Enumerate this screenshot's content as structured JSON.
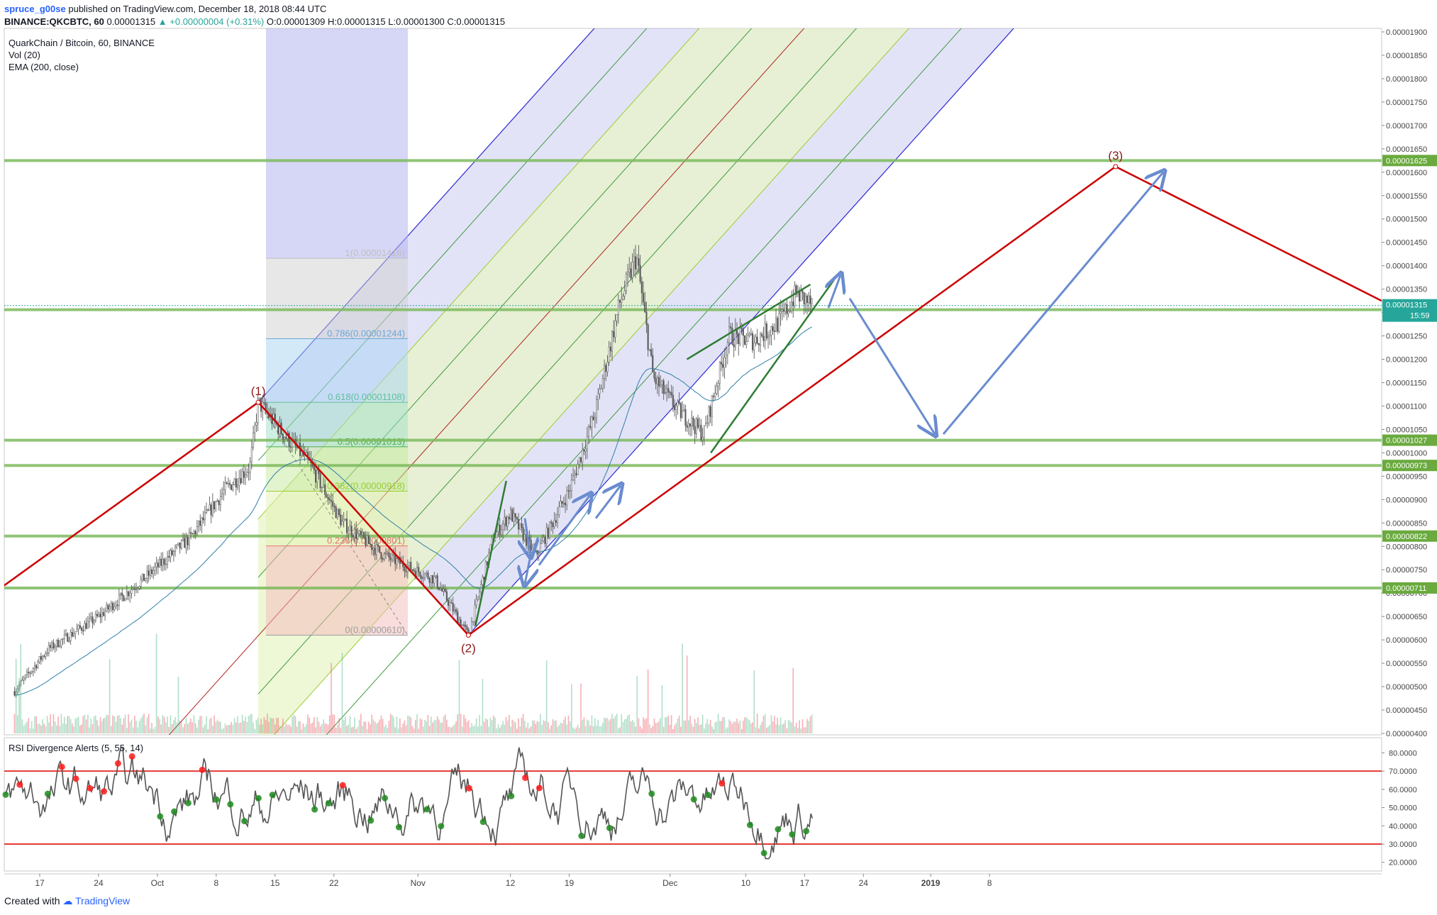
{
  "header": {
    "user": "spruce_g00se",
    "published": "published on TradingView.com, December 18, 2018 08:44 UTC",
    "symbol": "BINANCE:QKCBTC, 60",
    "last": "0.00001315",
    "change": "▲ +0.00000004 (+0.31%)",
    "o_label": "O:",
    "o_val": "0.00001309",
    "h_label": "H:",
    "h_val": "0.00001315",
    "l_label": "L:",
    "l_val": "0.00001300",
    "c_label": "C:",
    "c_val": "0.00001315"
  },
  "legend": {
    "title": "QuarkChain / Bitcoin, 60, BINANCE",
    "vol": "Vol (20)",
    "ema": "EMA (200, close)"
  },
  "rsi_title": "RSI Divergence Alerts (5, 55, 14)",
  "footer": {
    "created": "Created with",
    "brand": "TradingView"
  },
  "colors": {
    "up": "#53b987",
    "down": "#eb4d5c",
    "candle": "#5b5b5b",
    "pitchfork_outer": "#2a2ad1",
    "pitchfork_fill": "#9999e6",
    "median": "#b22222",
    "green_line": "#3e9b3e",
    "hline": "#7cba5d",
    "wave": "#cc0000",
    "arrow": "#6a8ccf",
    "rsi": "#555555",
    "rsi_band": "#e53935"
  },
  "chart_data": [
    {
      "type": "candlestick",
      "title": "QuarkChain / Bitcoin, 60, BINANCE",
      "x_axis_labels": [
        "17",
        "24",
        "Oct",
        "8",
        "15",
        "22",
        "Nov",
        "12",
        "19",
        "Dec",
        "10",
        "17",
        "24",
        "2019",
        "8"
      ],
      "y_axis_labels": [
        "0.00001900",
        "0.00001850",
        "0.00001800",
        "0.00001750",
        "0.00001700",
        "0.00001650",
        "0.00001600",
        "0.00001550",
        "0.00001500",
        "0.00001450",
        "0.00001400",
        "0.00001350",
        "0.00001300",
        "0.00001250",
        "0.00001200",
        "0.00001150",
        "0.00001100",
        "0.00001050",
        "0.00001000",
        "0.00000950",
        "0.00000900",
        "0.00000850",
        "0.00000800",
        "0.00000750",
        "0.00000700",
        "0.00000650",
        "0.00000600",
        "0.00000550",
        "0.00000500",
        "0.00000450",
        "0.00000400"
      ],
      "ylim": [
        4e-06,
        1.9e-05
      ],
      "price_path": [
        {
          "date": "Sep 14",
          "price": 4.9e-06
        },
        {
          "date": "Sep 18",
          "price": 5.8e-06
        },
        {
          "date": "Sep 24",
          "price": 6.5e-06
        },
        {
          "date": "Sep 30",
          "price": 7.4e-06
        },
        {
          "date": "Oct 5",
          "price": 8.2e-06
        },
        {
          "date": "Oct 9",
          "price": 9.2e-06
        },
        {
          "date": "Oct 12",
          "price": 9.7e-06
        },
        {
          "date": "Oct 13",
          "price": 1.108e-05
        },
        {
          "date": "Oct 16",
          "price": 1.04e-05
        },
        {
          "date": "Oct 19",
          "price": 9.8e-06
        },
        {
          "date": "Oct 23",
          "price": 8.5e-06
        },
        {
          "date": "Oct 28",
          "price": 7.8e-06
        },
        {
          "date": "Nov 3",
          "price": 7.3e-06
        },
        {
          "date": "Nov 7",
          "price": 6.1e-06
        },
        {
          "date": "Nov 10",
          "price": 8.2e-06
        },
        {
          "date": "Nov 12",
          "price": 8.7e-06
        },
        {
          "date": "Nov 15",
          "price": 7.8e-06
        },
        {
          "date": "Nov 19",
          "price": 9.2e-06
        },
        {
          "date": "Nov 22",
          "price": 1.08e-05
        },
        {
          "date": "Nov 25",
          "price": 1.32e-05
        },
        {
          "date": "Nov 27",
          "price": 1.42e-05
        },
        {
          "date": "Nov 29",
          "price": 1.16e-05
        },
        {
          "date": "Dec 2",
          "price": 1.09e-05
        },
        {
          "date": "Dec 5",
          "price": 1.04e-05
        },
        {
          "date": "Dec 8",
          "price": 1.25e-05
        },
        {
          "date": "Dec 11",
          "price": 1.24e-05
        },
        {
          "date": "Dec 14",
          "price": 1.28e-05
        },
        {
          "date": "Dec 16",
          "price": 1.34e-05
        },
        {
          "date": "Dec 18",
          "price": 1.315e-05
        }
      ],
      "fib_levels": [
        {
          "label": "1(0.00001416)",
          "value": 1.416e-05
        },
        {
          "label": "0.786(0.00001244)",
          "value": 1.244e-05
        },
        {
          "label": "0.618(0.00001108)",
          "value": 1.108e-05
        },
        {
          "label": "0.5(0.00001013)",
          "value": 1.013e-05
        },
        {
          "label": "0.382(0.00000918)",
          "value": 9.18e-06
        },
        {
          "label": "0.236(0.00000801)",
          "value": 8.01e-06
        },
        {
          "label": "0(0.00000610)",
          "value": 6.1e-06
        }
      ],
      "horizontal_levels": [
        {
          "label": "0.00001625",
          "value": 1.625e-05
        },
        {
          "label": "0.00001306",
          "value": 1.306e-05
        },
        {
          "label": "0.00001027",
          "value": 1.027e-05
        },
        {
          "label": "0.00000973",
          "value": 9.73e-06
        },
        {
          "label": "0.00000822",
          "value": 8.22e-06
        },
        {
          "label": "0.00000711",
          "value": 7.11e-06
        }
      ],
      "price_label": {
        "value": "0.00001315",
        "timer": "15:59"
      },
      "wave_labels": [
        "(1)",
        "(2)",
        "(3)"
      ]
    },
    {
      "type": "line",
      "title": "RSI Divergence Alerts (5, 55, 14)",
      "y_axis_labels": [
        "80.0000",
        "70.0000",
        "60.0000",
        "50.0000",
        "40.0000",
        "30.0000",
        "20.0000"
      ],
      "ylim": [
        16,
        86
      ],
      "bands": [
        70,
        30
      ]
    }
  ]
}
